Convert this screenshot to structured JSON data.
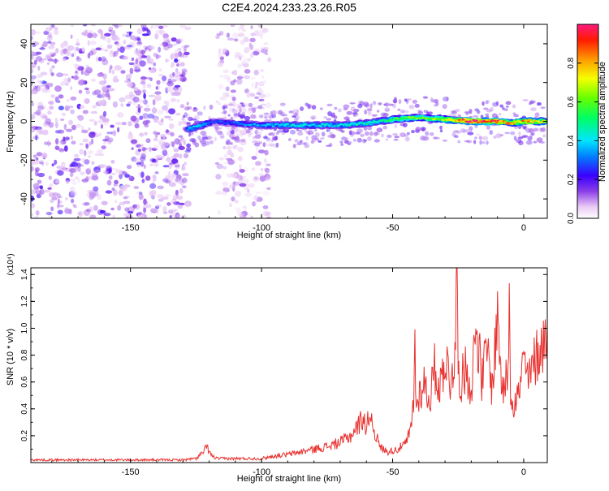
{
  "title": "C2E4.2024.233.23.26.R05",
  "chart_data": [
    {
      "type": "heatmap",
      "title": "C2E4.2024.233.23.26.R05",
      "xlabel": "Height of straight line (km)",
      "ylabel": "Frequency (Hz)",
      "xlim": [
        -188,
        9
      ],
      "ylim": [
        -50,
        50
      ],
      "xticks": [
        -150,
        -100,
        -50,
        0
      ],
      "yticks": [
        -40,
        -20,
        0,
        20,
        40
      ],
      "colorbar": {
        "label": "Normalized spectral amplitude",
        "range": [
          0,
          1
        ],
        "ticks": [
          0.0,
          0.2,
          0.4,
          0.6,
          0.8
        ],
        "tick_labels": [
          "0.0",
          "0.2",
          "0.4",
          "0.6",
          "0.8"
        ],
        "colormap": "rainbow (white-violet-blue-cyan-green-yellow-red)"
      },
      "noise_regions": [
        {
          "x_range": [
            -188,
            -128
          ],
          "freq_range": [
            -50,
            50
          ],
          "amplitude": 0.2
        },
        {
          "x_range": [
            -117,
            -97
          ],
          "freq_range": [
            -50,
            50
          ],
          "amplitude": 0.12
        }
      ],
      "ridge": [
        {
          "x": -128,
          "freq": -4,
          "amplitude": 0.35
        },
        {
          "x": -123,
          "freq": -2,
          "amplitude": 0.4
        },
        {
          "x": -118,
          "freq": 0,
          "amplitude": 0.25
        },
        {
          "x": -110,
          "freq": -1,
          "amplitude": 0.3
        },
        {
          "x": -100,
          "freq": -2,
          "amplitude": 0.35
        },
        {
          "x": -90,
          "freq": -2,
          "amplitude": 0.4
        },
        {
          "x": -80,
          "freq": -2,
          "amplitude": 0.4
        },
        {
          "x": -70,
          "freq": -2,
          "amplitude": 0.4
        },
        {
          "x": -60,
          "freq": -1,
          "amplitude": 0.45
        },
        {
          "x": -55,
          "freq": 0,
          "amplitude": 0.45
        },
        {
          "x": -50,
          "freq": 1,
          "amplitude": 0.55
        },
        {
          "x": -40,
          "freq": 2,
          "amplitude": 0.6
        },
        {
          "x": -30,
          "freq": 1,
          "amplitude": 0.65
        },
        {
          "x": -20,
          "freq": 0,
          "amplitude": 0.95
        },
        {
          "x": -10,
          "freq": 0,
          "amplitude": 0.9
        },
        {
          "x": -5,
          "freq": -1,
          "amplitude": 0.75
        },
        {
          "x": 0,
          "freq": 0,
          "amplitude": 0.8
        },
        {
          "x": 8,
          "freq": 0,
          "amplitude": 0.75
        }
      ]
    },
    {
      "type": "line",
      "xlabel": "Height of straight line (km)",
      "ylabel": "SNR (10 * v/v)",
      "y_multiplier_label": "(x10⁴)",
      "xlim": [
        -188,
        9
      ],
      "ylim": [
        0,
        1.45
      ],
      "xticks": [
        -150,
        -100,
        -50,
        0
      ],
      "yticks": [
        0.2,
        0.4,
        0.6,
        0.8,
        1.0,
        1.2,
        1.4
      ],
      "ytick_labels": [
        "0.2",
        "0.4",
        "0.6",
        "0.8",
        "1.0",
        "1.2",
        "1.4"
      ],
      "color": "#e8322f",
      "series": [
        {
          "x": [
            -188,
            -180,
            -170,
            -160,
            -150,
            -140,
            -130,
            -125,
            -122,
            -121,
            -119,
            -117,
            -110,
            -100,
            -95,
            -90,
            -85,
            -80,
            -75,
            -70,
            -66,
            -63,
            -61,
            -60,
            -59,
            -57,
            -55,
            -52,
            -50,
            -48,
            -45,
            -43,
            -42,
            -41.5,
            -41,
            -40,
            -38,
            -36,
            -34,
            -32,
            -30,
            -28,
            -26,
            -25.5,
            -25,
            -24,
            -22,
            -20,
            -18,
            -16,
            -14,
            -12,
            -10,
            -8,
            -6,
            -5.5,
            -5,
            -4,
            -2,
            0,
            2,
            4,
            6,
            8,
            9
          ],
          "values": [
            0.02,
            0.02,
            0.02,
            0.02,
            0.02,
            0.02,
            0.02,
            0.03,
            0.08,
            0.12,
            0.05,
            0.03,
            0.03,
            0.03,
            0.05,
            0.06,
            0.08,
            0.1,
            0.12,
            0.15,
            0.2,
            0.28,
            0.35,
            0.22,
            0.38,
            0.25,
            0.12,
            0.08,
            0.09,
            0.1,
            0.14,
            0.25,
            0.45,
            0.87,
            0.4,
            0.5,
            0.6,
            0.45,
            0.7,
            0.55,
            0.8,
            0.6,
            0.85,
            1.45,
            0.75,
            0.6,
            0.7,
            0.55,
            1.05,
            0.6,
            0.85,
            0.55,
            1.1,
            0.5,
            0.7,
            1.32,
            0.55,
            0.45,
            0.5,
            0.75,
            0.6,
            0.75,
            0.85,
            0.9,
            1.05
          ]
        }
      ]
    }
  ]
}
